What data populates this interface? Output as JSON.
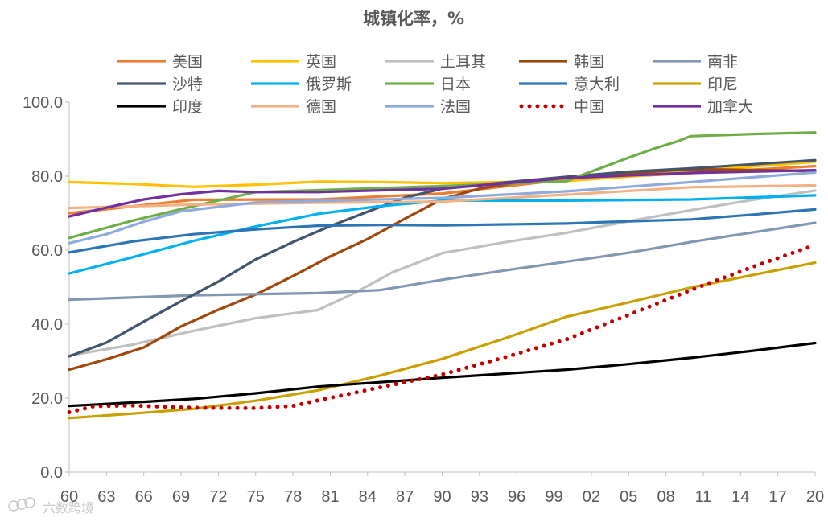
{
  "watermark": "六数跨境",
  "chart_data": {
    "type": "line",
    "title": "城镇化率，%",
    "xlabel": "",
    "ylabel": "",
    "xlim": [
      1960,
      2020
    ],
    "ylim": [
      0,
      100
    ],
    "y_ticks": [
      "0.0",
      "20.0",
      "40.0",
      "60.0",
      "80.0",
      "100.0"
    ],
    "x_ticks": [
      {
        "x": 1960,
        "label": "60"
      },
      {
        "x": 1963,
        "label": "63"
      },
      {
        "x": 1966,
        "label": "66"
      },
      {
        "x": 1969,
        "label": "69"
      },
      {
        "x": 1972,
        "label": "72"
      },
      {
        "x": 1975,
        "label": "75"
      },
      {
        "x": 1978,
        "label": "78"
      },
      {
        "x": 1981,
        "label": "81"
      },
      {
        "x": 1984,
        "label": "84"
      },
      {
        "x": 1987,
        "label": "87"
      },
      {
        "x": 1990,
        "label": "90"
      },
      {
        "x": 1993,
        "label": "93"
      },
      {
        "x": 1996,
        "label": "96"
      },
      {
        "x": 1999,
        "label": "99"
      },
      {
        "x": 2002,
        "label": "02"
      },
      {
        "x": 2005,
        "label": "05"
      },
      {
        "x": 2008,
        "label": "08"
      },
      {
        "x": 2011,
        "label": "11"
      },
      {
        "x": 2014,
        "label": "14"
      },
      {
        "x": 2017,
        "label": "17"
      },
      {
        "x": 2020,
        "label": "20"
      }
    ],
    "legend_position": "top",
    "series": [
      {
        "name": "美国",
        "color": "#ED7D31",
        "dash": "solid",
        "x": [
          1960,
          1970,
          1980,
          1990,
          2000,
          2010,
          2020
        ],
        "values": [
          70.0,
          73.6,
          73.7,
          75.3,
          79.1,
          80.8,
          82.7
        ]
      },
      {
        "name": "英国",
        "color": "#FFC000",
        "dash": "solid",
        "x": [
          1960,
          1965,
          1970,
          1975,
          1980,
          1985,
          1990,
          1995,
          2000,
          2005,
          2010,
          2015,
          2020
        ],
        "values": [
          78.4,
          77.9,
          77.1,
          77.7,
          78.5,
          78.4,
          78.1,
          78.4,
          78.7,
          79.9,
          81.3,
          82.6,
          83.9
        ]
      },
      {
        "name": "土耳其",
        "color": "#BFBFBF",
        "dash": "solid",
        "x": [
          1960,
          1965,
          1970,
          1975,
          1980,
          1983,
          1986,
          1990,
          1995,
          2000,
          2005,
          2010,
          2015,
          2020
        ],
        "values": [
          31.5,
          34.4,
          38.2,
          41.6,
          43.8,
          48.5,
          54.0,
          59.2,
          62.1,
          64.7,
          67.8,
          70.8,
          73.6,
          76.1
        ]
      },
      {
        "name": "韩国",
        "color": "#9E480E",
        "dash": "solid",
        "x": [
          1960,
          1963,
          1966,
          1969,
          1972,
          1975,
          1978,
          1981,
          1984,
          1987,
          1990,
          1993,
          1996,
          2000,
          2010,
          2020
        ],
        "values": [
          27.7,
          30.5,
          33.7,
          39.4,
          43.9,
          48.0,
          53.0,
          58.3,
          63.0,
          68.5,
          73.8,
          76.6,
          78.2,
          79.6,
          81.9,
          81.4
        ]
      },
      {
        "name": "南非",
        "color": "#8497B0",
        "dash": "solid",
        "x": [
          1960,
          1970,
          1980,
          1985,
          1990,
          1995,
          2000,
          2005,
          2010,
          2015,
          2020
        ],
        "values": [
          46.6,
          47.8,
          48.4,
          49.2,
          52.0,
          54.5,
          56.9,
          59.3,
          62.2,
          64.8,
          67.4
        ]
      },
      {
        "name": "沙特",
        "color": "#44546A",
        "dash": "solid",
        "x": [
          1960,
          1963,
          1966,
          1969,
          1972,
          1975,
          1978,
          1981,
          1984,
          1987,
          1990,
          1995,
          2000,
          2005,
          2010,
          2020
        ],
        "values": [
          31.3,
          35.0,
          40.7,
          46.2,
          51.5,
          57.5,
          62.2,
          66.5,
          70.4,
          74.2,
          76.6,
          78.3,
          79.8,
          81.2,
          82.1,
          84.3
        ]
      },
      {
        "name": "俄罗斯",
        "color": "#00B0F0",
        "dash": "solid",
        "x": [
          1960,
          1965,
          1970,
          1975,
          1980,
          1985,
          1990,
          2000,
          2010,
          2020
        ],
        "values": [
          53.7,
          58.0,
          62.5,
          66.4,
          69.8,
          71.9,
          73.4,
          73.4,
          73.7,
          74.8
        ]
      },
      {
        "name": "日本",
        "color": "#70AD47",
        "dash": "solid",
        "x": [
          1960,
          1965,
          1970,
          1975,
          1980,
          1990,
          2000,
          2001,
          2003,
          2005,
          2007,
          2009,
          2010,
          2015,
          2020
        ],
        "values": [
          63.3,
          67.9,
          71.9,
          75.7,
          76.2,
          77.3,
          78.6,
          80.0,
          82.5,
          85.0,
          87.4,
          89.5,
          90.8,
          91.4,
          91.8
        ]
      },
      {
        "name": "意大利",
        "color": "#2E75B6",
        "dash": "solid",
        "x": [
          1960,
          1965,
          1970,
          1975,
          1980,
          1985,
          1990,
          2000,
          2005,
          2010,
          2015,
          2020
        ],
        "values": [
          59.4,
          62.3,
          64.3,
          65.6,
          66.6,
          66.8,
          66.7,
          67.2,
          67.8,
          68.3,
          69.6,
          71.0
        ]
      },
      {
        "name": "印尼",
        "color": "#C9A000",
        "dash": "solid",
        "x": [
          1960,
          1965,
          1970,
          1975,
          1980,
          1985,
          1990,
          1995,
          2000,
          2005,
          2010,
          2015,
          2020
        ],
        "values": [
          14.6,
          15.8,
          17.1,
          19.3,
          22.1,
          26.1,
          30.6,
          36.1,
          42.0,
          45.9,
          49.9,
          53.3,
          56.6
        ]
      },
      {
        "name": "印度",
        "color": "#000000",
        "dash": "solid",
        "x": [
          1960,
          1965,
          1970,
          1975,
          1980,
          1985,
          1990,
          1995,
          2000,
          2005,
          2010,
          2015,
          2020
        ],
        "values": [
          17.9,
          18.8,
          19.8,
          21.3,
          23.1,
          24.3,
          25.5,
          26.6,
          27.7,
          29.2,
          30.9,
          32.8,
          34.9
        ]
      },
      {
        "name": "德国",
        "color": "#F4B183",
        "dash": "solid",
        "x": [
          1960,
          1970,
          1980,
          1990,
          2000,
          2010,
          2020
        ],
        "values": [
          71.4,
          72.3,
          72.8,
          73.1,
          75.0,
          77.0,
          77.5
        ]
      },
      {
        "name": "法国",
        "color": "#8FAADC",
        "dash": "solid",
        "x": [
          1960,
          1963,
          1966,
          1969,
          1972,
          1975,
          1980,
          1990,
          2000,
          2010,
          2020
        ],
        "values": [
          61.9,
          64.3,
          67.7,
          70.5,
          71.7,
          72.9,
          73.3,
          74.1,
          75.9,
          78.4,
          81.0
        ]
      },
      {
        "name": "中国",
        "color": "#C00000",
        "dash": "dotted",
        "x": [
          1960,
          1962,
          1965,
          1970,
          1975,
          1978,
          1980,
          1985,
          1990,
          1995,
          2000,
          2005,
          2010,
          2015,
          2020
        ],
        "values": [
          16.2,
          17.8,
          18.0,
          17.4,
          17.3,
          17.9,
          19.4,
          22.9,
          26.4,
          31.0,
          35.9,
          42.5,
          49.2,
          55.5,
          61.4
        ]
      },
      {
        "name": "加拿大",
        "color": "#7030A0",
        "dash": "solid",
        "x": [
          1960,
          1963,
          1966,
          1969,
          1972,
          1975,
          1980,
          1990,
          2000,
          2010,
          2020
        ],
        "values": [
          69.1,
          71.5,
          73.7,
          75.1,
          76.0,
          75.7,
          75.7,
          76.6,
          79.5,
          80.9,
          81.6
        ]
      }
    ]
  }
}
